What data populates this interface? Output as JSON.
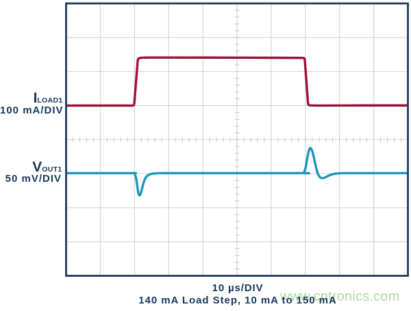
{
  "figure_type": "oscilloscope-screenshot",
  "colors": {
    "trace_iload": "#a00f35",
    "trace_vout": "#1e96b9",
    "text": "#17365c",
    "plot_border": "#1d3a5f",
    "grid": "#ccd3da",
    "tick": "#c2cad3",
    "background": "#ffffff",
    "watermark": "#aeda9f"
  },
  "labels": {
    "ch1": {
      "symbol": "I",
      "subscript": "LOAD1",
      "scale": "100 mA/DIV"
    },
    "ch2": {
      "symbol": "V",
      "subscript": "OUT1",
      "scale": "50 mV/DIV"
    }
  },
  "captions": {
    "timebase": "10 µs/DIV",
    "description": "140 mA Load Step, 10 mA to 150 mA"
  },
  "watermark": "www.cntronics.com",
  "chart_data": {
    "type": "line",
    "subtype": "oscilloscope",
    "title": "",
    "xlabel": "10 µs/DIV",
    "x_divisions": 10,
    "y_divisions": 8,
    "ticks_per_division": 5,
    "x_unit": "µs",
    "x_per_division": 10,
    "x_range": [
      0,
      100
    ],
    "legend_position": "left",
    "grid": true,
    "series": [
      {
        "name": "ILOAD1",
        "label": "I LOAD1 100 mA/DIV",
        "unit": "mA",
        "per_division": 100,
        "zero_offset_div": 3.1,
        "color_key": "trace_iload",
        "render": "step",
        "points": [
          [
            0,
            10
          ],
          [
            10,
            10
          ],
          [
            19.3,
            10
          ],
          [
            19.9,
            10.6
          ],
          [
            21.0,
            147.5
          ],
          [
            21.7,
            150.5
          ],
          [
            24,
            151.0
          ],
          [
            40,
            150.9
          ],
          [
            60,
            150.4
          ],
          [
            69.4,
            150.0
          ],
          [
            69.8,
            148.5
          ],
          [
            70.8,
            12.5
          ],
          [
            71.4,
            10.4
          ],
          [
            74,
            10.0
          ],
          [
            87,
            10.4
          ],
          [
            100,
            10.4
          ]
        ]
      },
      {
        "name": "VOUT1",
        "label": "V OUT1 50 mV/DIV",
        "unit": "mV",
        "per_division": 50,
        "zero_offset_div": 4.985,
        "color_key": "trace_vout",
        "render": "smooth",
        "points": [
          [
            0,
            0
          ],
          [
            10,
            0
          ],
          [
            19.6,
            0
          ],
          [
            20.0,
            -0.7
          ],
          [
            20.5,
            -8
          ],
          [
            21.1,
            -28
          ],
          [
            21.5,
            -32.5
          ],
          [
            21.9,
            -29
          ],
          [
            22.4,
            -19
          ],
          [
            22.9,
            -10.5
          ],
          [
            23.5,
            -5.2
          ],
          [
            24.3,
            -2.2
          ],
          [
            25.3,
            -0.8
          ],
          [
            26.6,
            -0.2
          ],
          [
            29,
            0
          ],
          [
            45,
            0
          ],
          [
            69.2,
            0
          ],
          [
            69.6,
            0.8
          ],
          [
            70.1,
            9
          ],
          [
            70.7,
            26
          ],
          [
            71.2,
            35.5
          ],
          [
            71.6,
            36.5
          ],
          [
            72.1,
            31
          ],
          [
            72.7,
            18
          ],
          [
            73.3,
            5
          ],
          [
            73.8,
            -2.5
          ],
          [
            74.4,
            -6.5
          ],
          [
            75.0,
            -7.3
          ],
          [
            75.7,
            -6.5
          ],
          [
            76.6,
            -4.2
          ],
          [
            77.6,
            -2.2
          ],
          [
            78.7,
            -0.9
          ],
          [
            80.0,
            -0.2
          ],
          [
            82,
            0
          ],
          [
            85,
            0
          ],
          [
            100,
            0
          ]
        ]
      }
    ]
  }
}
